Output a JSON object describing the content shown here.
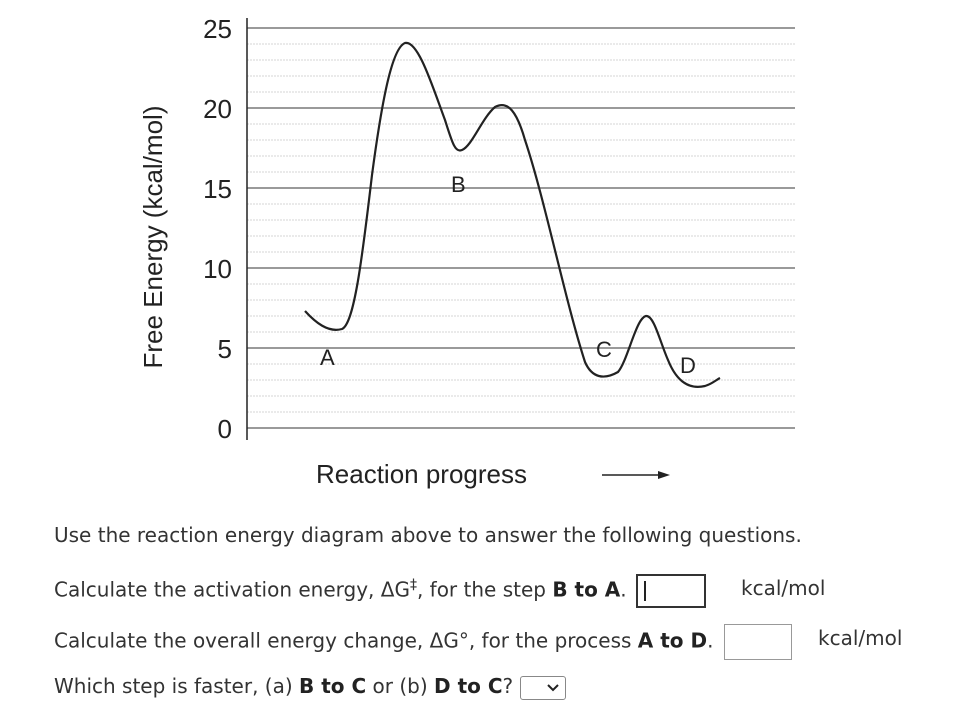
{
  "chart_data": {
    "type": "line",
    "ylabel": "Free Energy (kcal/mol)",
    "xlabel": "Reaction progress",
    "y_ticks": [
      "25",
      "20",
      "15",
      "10",
      "5",
      "0"
    ],
    "y_tick_values": [
      25,
      20,
      15,
      10,
      5,
      0
    ],
    "ylim": [
      0,
      26
    ],
    "grid": true,
    "points": [
      {
        "name": "A",
        "energy": 6
      },
      {
        "name": "B",
        "energy": 17
      },
      {
        "name": "C",
        "energy": 3
      },
      {
        "name": "D",
        "energy": 2.5
      }
    ],
    "transition_states": [
      24,
      20,
      8
    ]
  },
  "questions": {
    "intro": "Use the reaction energy diagram above to answer the following questions.",
    "q1": {
      "prefix": "Calculate the activation energy, ΔG",
      "sup": "‡",
      "mid": ", for the step ",
      "bold": "B to A",
      "suffix": ".",
      "value": "",
      "unit": "kcal/mol"
    },
    "q2": {
      "prefix": "Calculate the overall energy change, ΔG°, for the process ",
      "bold": "A to D",
      "suffix": ".",
      "value": "",
      "unit": "kcal/mol"
    },
    "q3": {
      "prefix": "Which step is faster, (a) ",
      "bold1": "B to C",
      "mid": " or (b) ",
      "bold2": "D to C",
      "suffix": "?",
      "selected": ""
    }
  }
}
